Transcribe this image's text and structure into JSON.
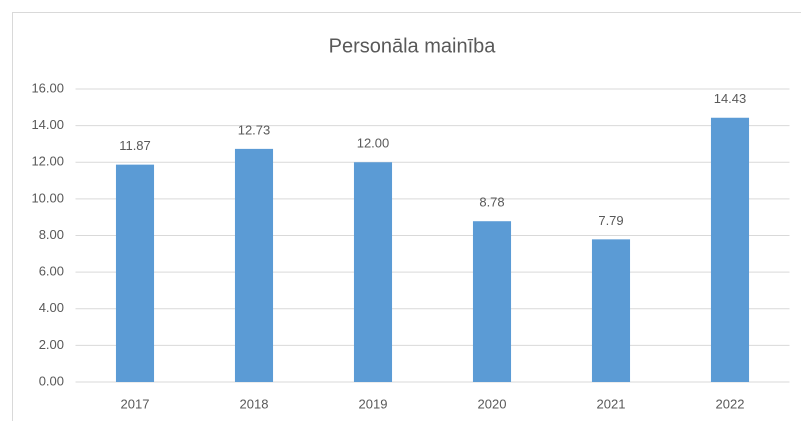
{
  "chart_data": {
    "type": "bar",
    "title": "Personāla mainība",
    "categories": [
      "2017",
      "2018",
      "2019",
      "2020",
      "2021",
      "2022"
    ],
    "values": [
      11.87,
      12.73,
      12,
      8.78,
      7.79,
      14.43
    ],
    "value_labels": [
      "11.87",
      "12.73",
      "12.00",
      "8.78",
      "7.79",
      "14.43"
    ],
    "color": "#5b9bd5",
    "ylim": [
      0,
      16
    ],
    "yticks": [
      {
        "value": 0,
        "label": "0.00"
      },
      {
        "value": 2,
        "label": "2.00"
      },
      {
        "value": 4,
        "label": "4.00"
      },
      {
        "value": 6,
        "label": "6.00"
      },
      {
        "value": 8,
        "label": "8.00"
      },
      {
        "value": 10,
        "label": "10.00"
      },
      {
        "value": 12,
        "label": "12.00"
      },
      {
        "value": 14,
        "label": "14.00"
      },
      {
        "value": 16,
        "label": "16.00"
      }
    ],
    "grid": true
  }
}
